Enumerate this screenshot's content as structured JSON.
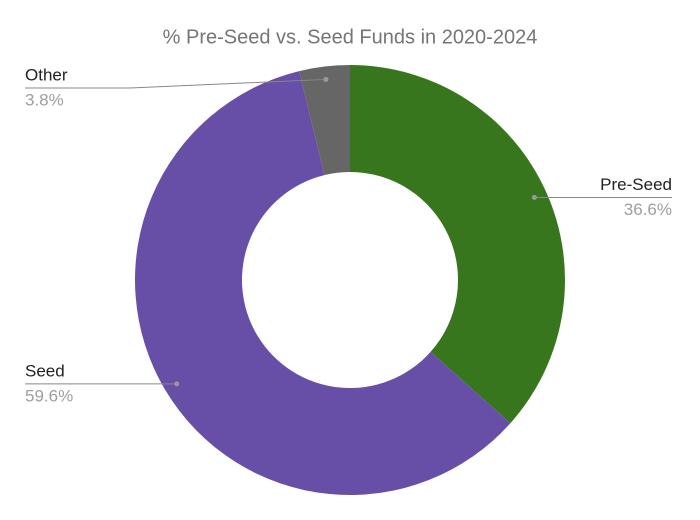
{
  "chart_data": {
    "type": "pie",
    "title": "% Pre-Seed vs. Seed Funds in 2020-2024",
    "categories": [
      "Pre-Seed",
      "Seed",
      "Other"
    ],
    "values": [
      36.6,
      59.6,
      3.8
    ],
    "value_labels": [
      "36.6%",
      "59.6%",
      "3.8%"
    ],
    "colors": [
      "#38761d",
      "#674ea7",
      "#666666"
    ],
    "donut": true
  }
}
